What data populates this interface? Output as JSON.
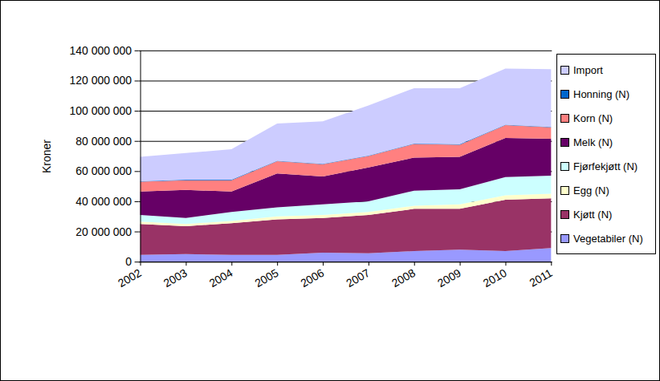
{
  "chart_data": {
    "type": "area",
    "stacked": true,
    "grid": true,
    "legend": "right",
    "y_label": "Kroner",
    "categories": [
      "2002",
      "2003",
      "2004",
      "2005",
      "2006",
      "2007",
      "2008",
      "2009",
      "2010",
      "2011"
    ],
    "ylim": [
      0,
      140000000
    ],
    "yticks": [
      {
        "value": 0,
        "label": "0"
      },
      {
        "value": 20000000,
        "label": "20 000 000"
      },
      {
        "value": 40000000,
        "label": "40 000 000"
      },
      {
        "value": 60000000,
        "label": "60 000 000"
      },
      {
        "value": 80000000,
        "label": "80 000 000"
      },
      {
        "value": 100000000,
        "label": "100 000 000"
      },
      {
        "value": 120000000,
        "label": "120 000 000"
      },
      {
        "value": 140000000,
        "label": "140 000 000"
      }
    ],
    "series": [
      {
        "name": "Vegetabiler (N)",
        "color": "#9999FF",
        "values": [
          4500000,
          5000000,
          4500000,
          4500000,
          6000000,
          5500000,
          7000000,
          8000000,
          7000000,
          9000000
        ]
      },
      {
        "name": "Kjøtt (N)",
        "color": "#993366",
        "values": [
          20500000,
          18500000,
          21000000,
          23500000,
          23000000,
          25500000,
          28000000,
          27000000,
          34000000,
          33000000
        ]
      },
      {
        "name": "Egg (N)",
        "color": "#FFFFCC",
        "values": [
          1500000,
          1500000,
          1500000,
          2000000,
          2000000,
          2000000,
          2000000,
          3000000,
          3000000,
          3000000
        ]
      },
      {
        "name": "Fjørfekjøtt (N)",
        "color": "#CCFFFF",
        "values": [
          4500000,
          4000000,
          6000000,
          6000000,
          7000000,
          7000000,
          10000000,
          10000000,
          12000000,
          12000000
        ]
      },
      {
        "name": "Melk (N)",
        "color": "#660066",
        "values": [
          15500000,
          18500000,
          13500000,
          22500000,
          18500000,
          22500000,
          22000000,
          21500000,
          26000000,
          24500000
        ]
      },
      {
        "name": "Korn (N)",
        "color": "#FF8080",
        "values": [
          6500000,
          6500000,
          7500000,
          8000000,
          8000000,
          7500000,
          9000000,
          8000000,
          8500000,
          7500000
        ]
      },
      {
        "name": "Honning (N)",
        "color": "#0066CC",
        "values": [
          300000,
          300000,
          300000,
          300000,
          300000,
          300000,
          300000,
          300000,
          300000,
          300000
        ]
      },
      {
        "name": "Import",
        "color": "#CCCCFF",
        "values": [
          16200000,
          17700000,
          20200000,
          24700000,
          28200000,
          33200000,
          36700000,
          37200000,
          37200000,
          38200000
        ]
      }
    ]
  }
}
